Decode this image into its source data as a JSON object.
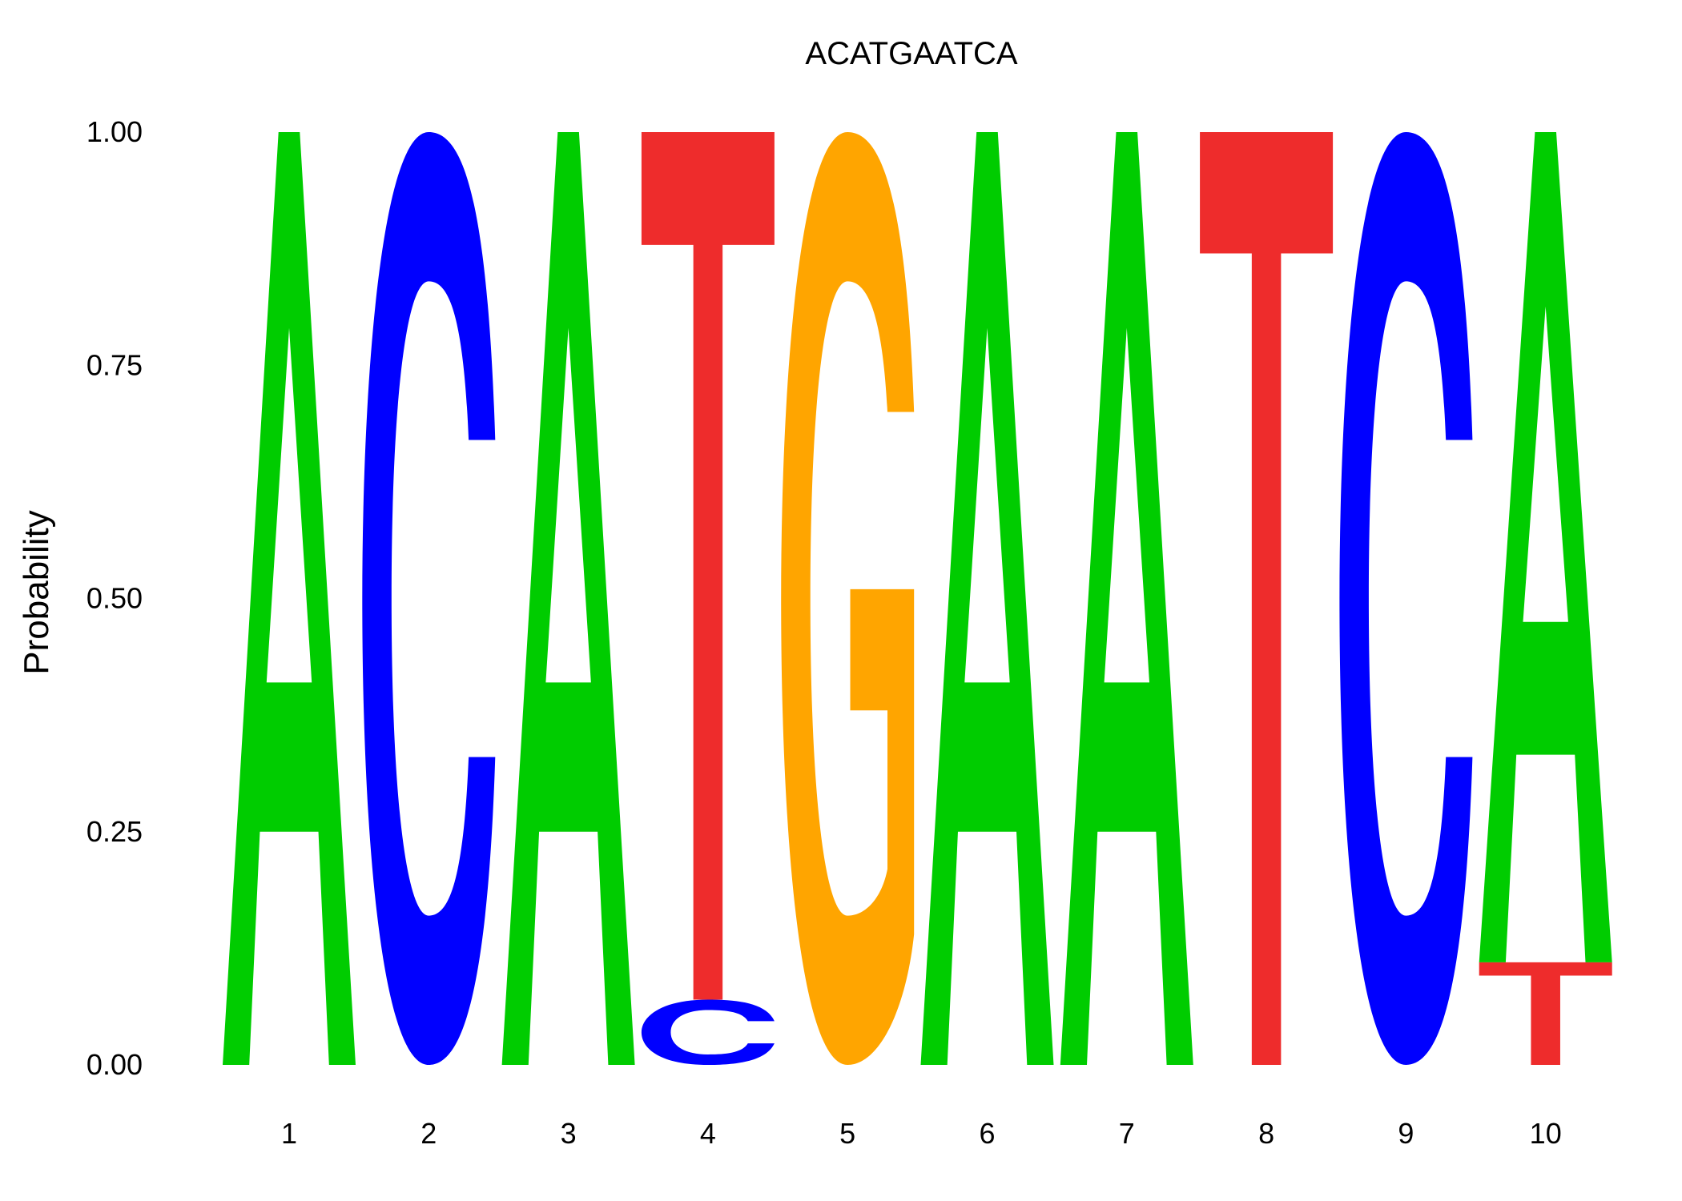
{
  "chart_data": {
    "type": "sequence-logo",
    "title": "ACATGAATCA",
    "ylabel": "Probability",
    "xlabel": "",
    "ylim": [
      0,
      1
    ],
    "yticks": [
      "0.00",
      "0.25",
      "0.50",
      "0.75",
      "1.00"
    ],
    "positions": [
      "1",
      "2",
      "3",
      "4",
      "5",
      "6",
      "7",
      "8",
      "9",
      "10"
    ],
    "letters": [
      [
        {
          "base": "A",
          "prob": 1.0
        }
      ],
      [
        {
          "base": "C",
          "prob": 1.0
        }
      ],
      [
        {
          "base": "A",
          "prob": 1.0
        }
      ],
      [
        {
          "base": "C",
          "prob": 0.07
        },
        {
          "base": "T",
          "prob": 0.93
        }
      ],
      [
        {
          "base": "G",
          "prob": 1.0
        }
      ],
      [
        {
          "base": "A",
          "prob": 1.0
        }
      ],
      [
        {
          "base": "A",
          "prob": 1.0
        }
      ],
      [
        {
          "base": "T",
          "prob": 1.0
        }
      ],
      [
        {
          "base": "C",
          "prob": 1.0
        }
      ],
      [
        {
          "base": "T",
          "prob": 0.11
        },
        {
          "base": "A",
          "prob": 0.89
        }
      ]
    ],
    "colors": {
      "A": "#00cc00",
      "C": "#0000ff",
      "G": "#ffa500",
      "T": "#ee2c2c"
    }
  }
}
